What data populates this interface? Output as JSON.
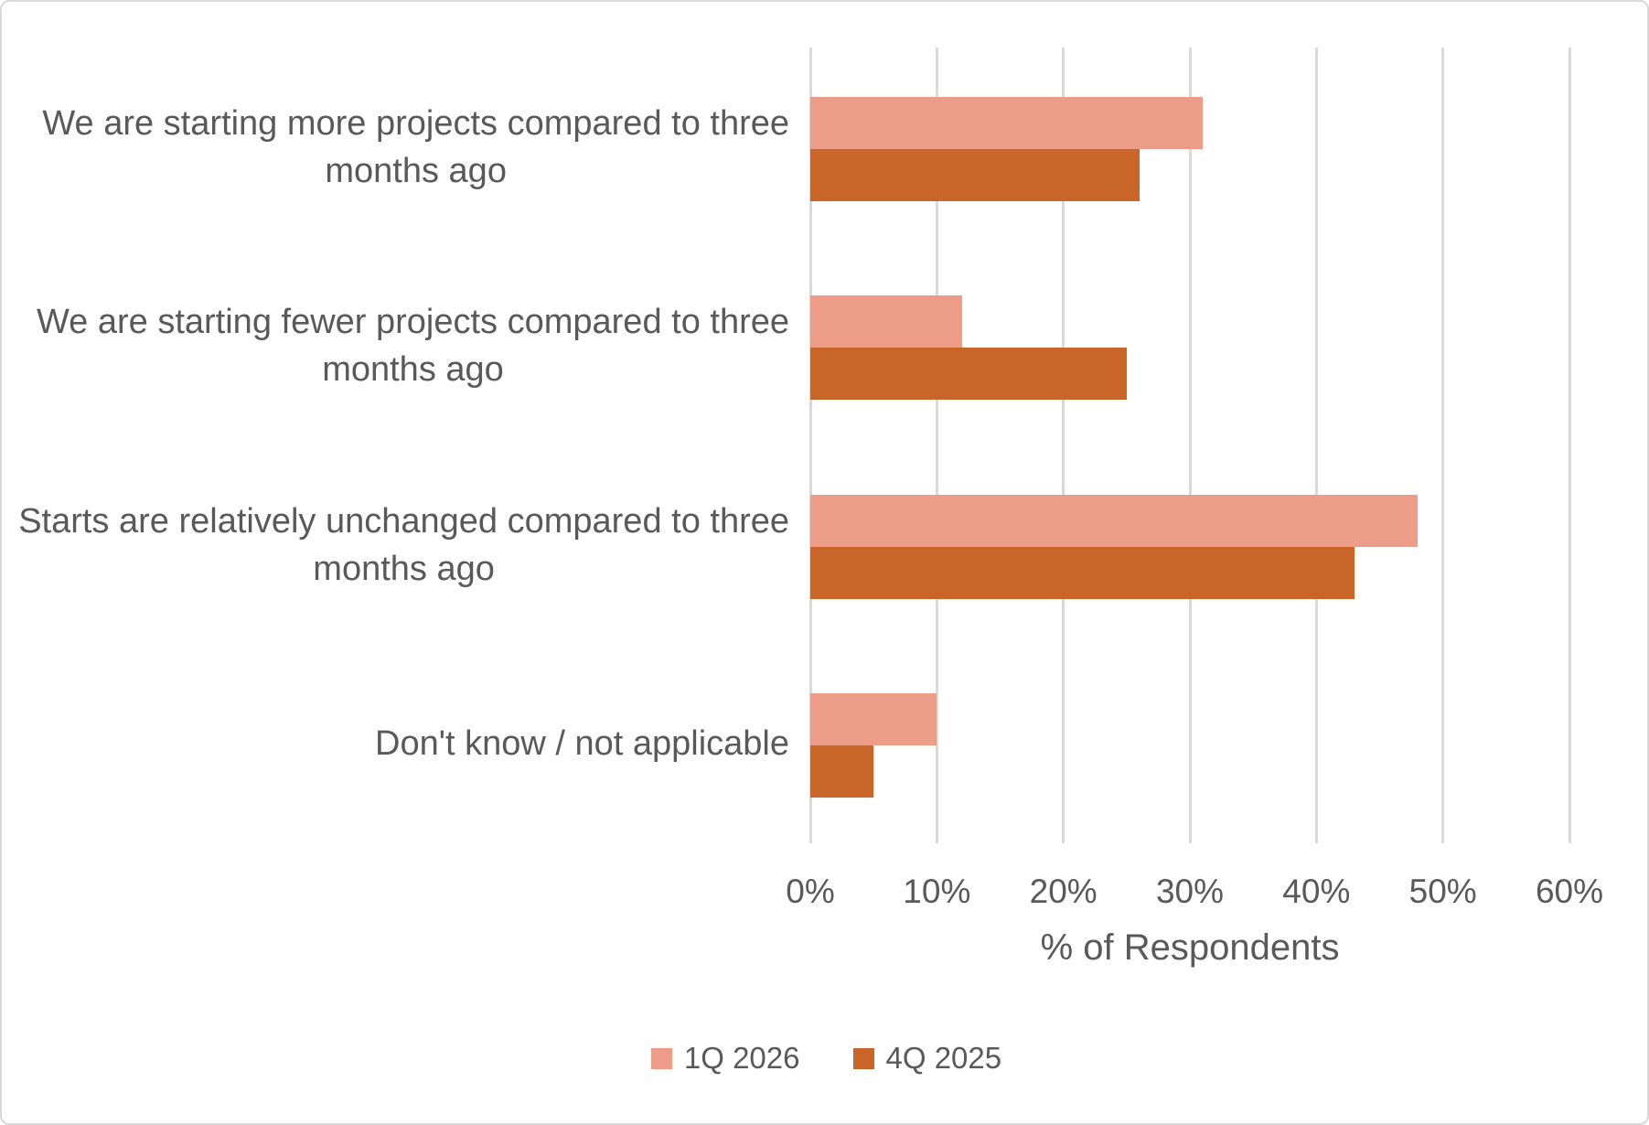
{
  "chart_data": {
    "type": "bar",
    "orientation": "horizontal",
    "title": "",
    "xlabel": "% of Respondents",
    "ylabel": "",
    "xlim": [
      0,
      60
    ],
    "xticks": [
      "0%",
      "10%",
      "20%",
      "30%",
      "40%",
      "50%",
      "60%"
    ],
    "xtick_values": [
      0,
      10,
      20,
      30,
      40,
      50,
      60
    ],
    "grid": "vertical",
    "legend_position": "bottom",
    "categories": [
      "We are starting more projects compared to three\nmonths ago",
      "We are starting fewer projects compared to three\nmonths ago",
      "Starts are relatively unchanged compared to three\nmonths ago",
      "Don't know / not applicable"
    ],
    "series": [
      {
        "name": "1Q 2026",
        "color": "#ED9D87",
        "values": [
          31,
          12,
          48,
          10
        ]
      },
      {
        "name": "4Q 2025",
        "color": "#CA652A",
        "values": [
          26,
          25,
          43,
          5
        ]
      }
    ]
  },
  "colors": {
    "text": "#595959",
    "gridline": "#D9D9D9",
    "border": "#D9D9D9",
    "background": "#FFFFFF"
  }
}
